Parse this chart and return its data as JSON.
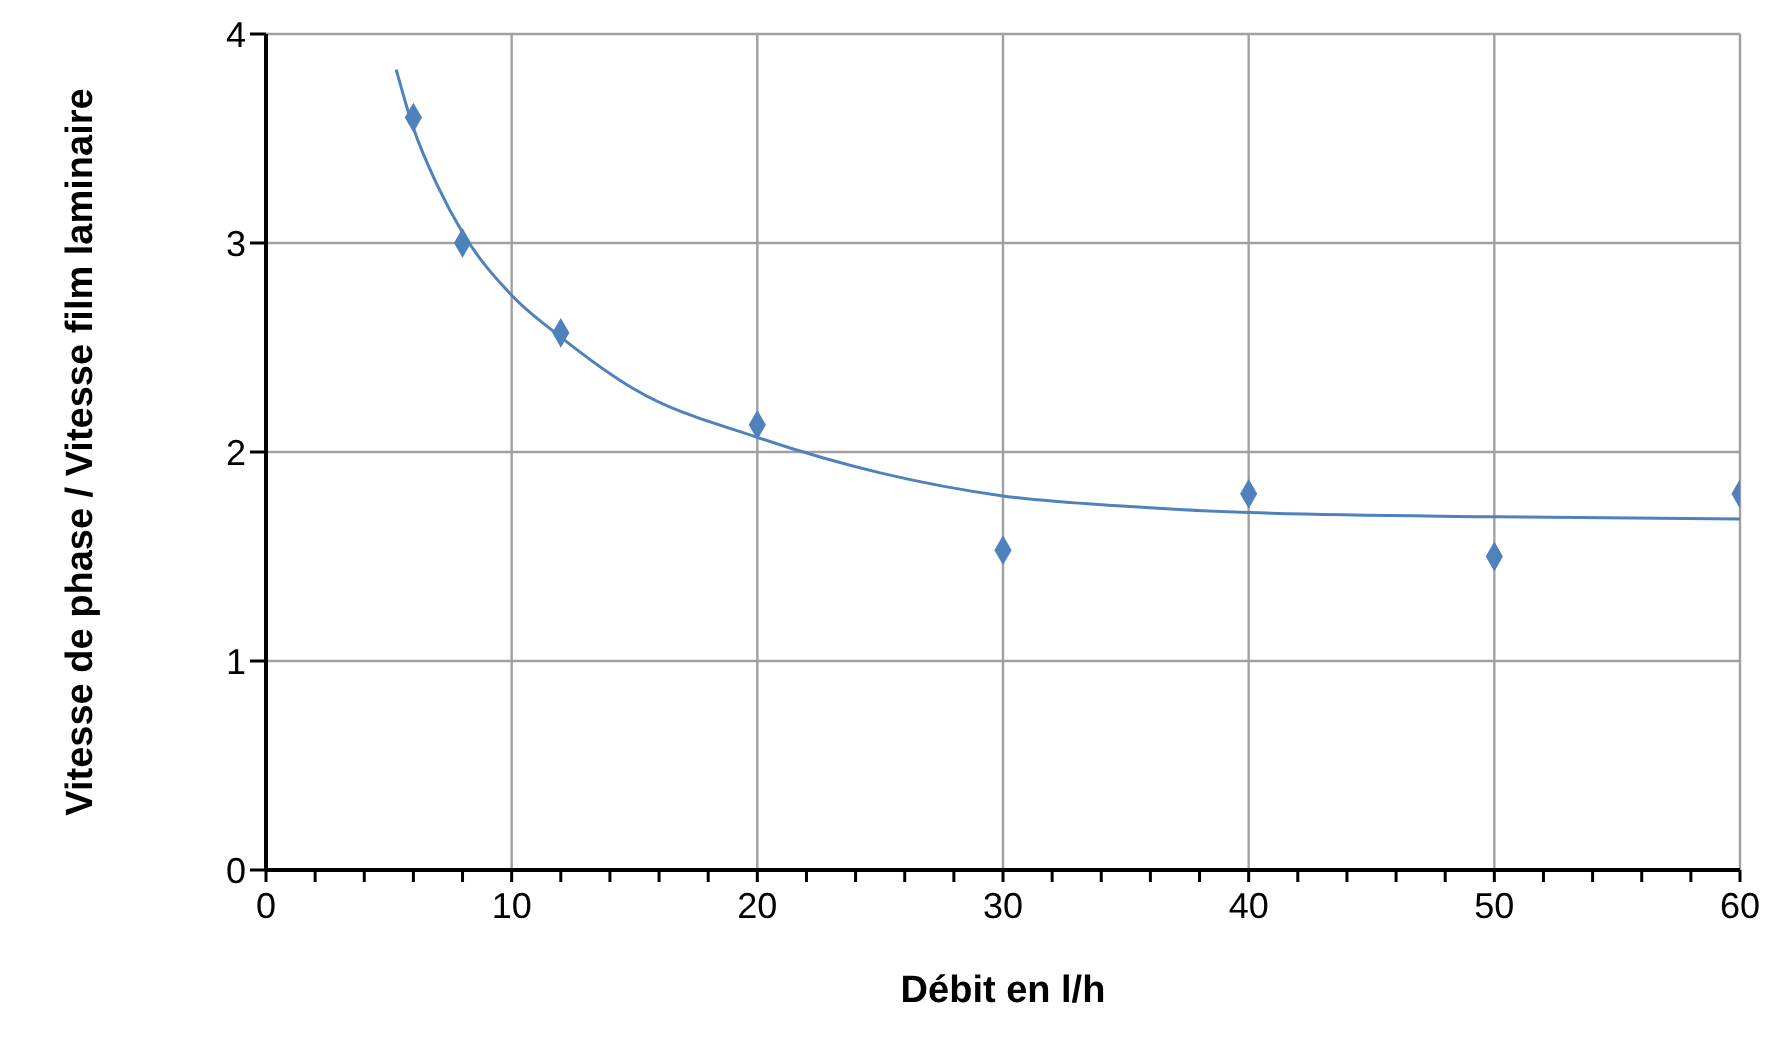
{
  "chart_data": {
    "type": "scatter",
    "xlabel": "Débit en l/h",
    "ylabel": "Vitesse de phase / Vitesse film laminaire",
    "xlim": [
      0,
      60
    ],
    "ylim": [
      0,
      4
    ],
    "xticks": [
      0,
      {
        "value": 2,
        "label": null
      },
      {
        "value": 4,
        "label": null
      },
      {
        "value": 6,
        "label": null
      },
      {
        "value": 8,
        "label": null
      },
      10,
      {
        "value": 12,
        "label": null
      },
      {
        "value": 14,
        "label": null
      },
      {
        "value": 16,
        "label": null
      },
      {
        "value": 18,
        "label": null
      },
      20,
      {
        "value": 22,
        "label": null
      },
      {
        "value": 24,
        "label": null
      },
      {
        "value": 26,
        "label": null
      },
      {
        "value": 28,
        "label": null
      },
      30,
      {
        "value": 32,
        "label": null
      },
      {
        "value": 34,
        "label": null
      },
      {
        "value": 36,
        "label": null
      },
      {
        "value": 38,
        "label": null
      },
      40,
      {
        "value": 42,
        "label": null
      },
      {
        "value": 44,
        "label": null
      },
      {
        "value": 46,
        "label": null
      },
      {
        "value": 48,
        "label": null
      },
      50,
      {
        "value": 52,
        "label": null
      },
      {
        "value": 54,
        "label": null
      },
      {
        "value": 56,
        "label": null
      },
      {
        "value": 58,
        "label": null
      },
      60
    ],
    "yticks": [
      0,
      1,
      2,
      3,
      4
    ],
    "grid": true,
    "legend": false,
    "series": [
      {
        "color": "#4f81bd",
        "marker": "diamond",
        "x": [
          6,
          8,
          12,
          20,
          30,
          40,
          50,
          60
        ],
        "values": [
          3.6,
          3.0,
          2.57,
          2.13,
          1.53,
          1.8,
          1.5,
          1.8
        ]
      },
      {
        "type": "line",
        "color": "#4f81bd",
        "marker": "none",
        "x": [
          5.3,
          6,
          7,
          8,
          10,
          12,
          15,
          20,
          25,
          30,
          35,
          40,
          50,
          60
        ],
        "values": [
          3.83,
          3.55,
          3.27,
          3.05,
          2.75,
          2.55,
          2.3,
          2.07,
          1.9,
          1.79,
          1.74,
          1.71,
          1.69,
          1.68
        ]
      }
    ]
  }
}
